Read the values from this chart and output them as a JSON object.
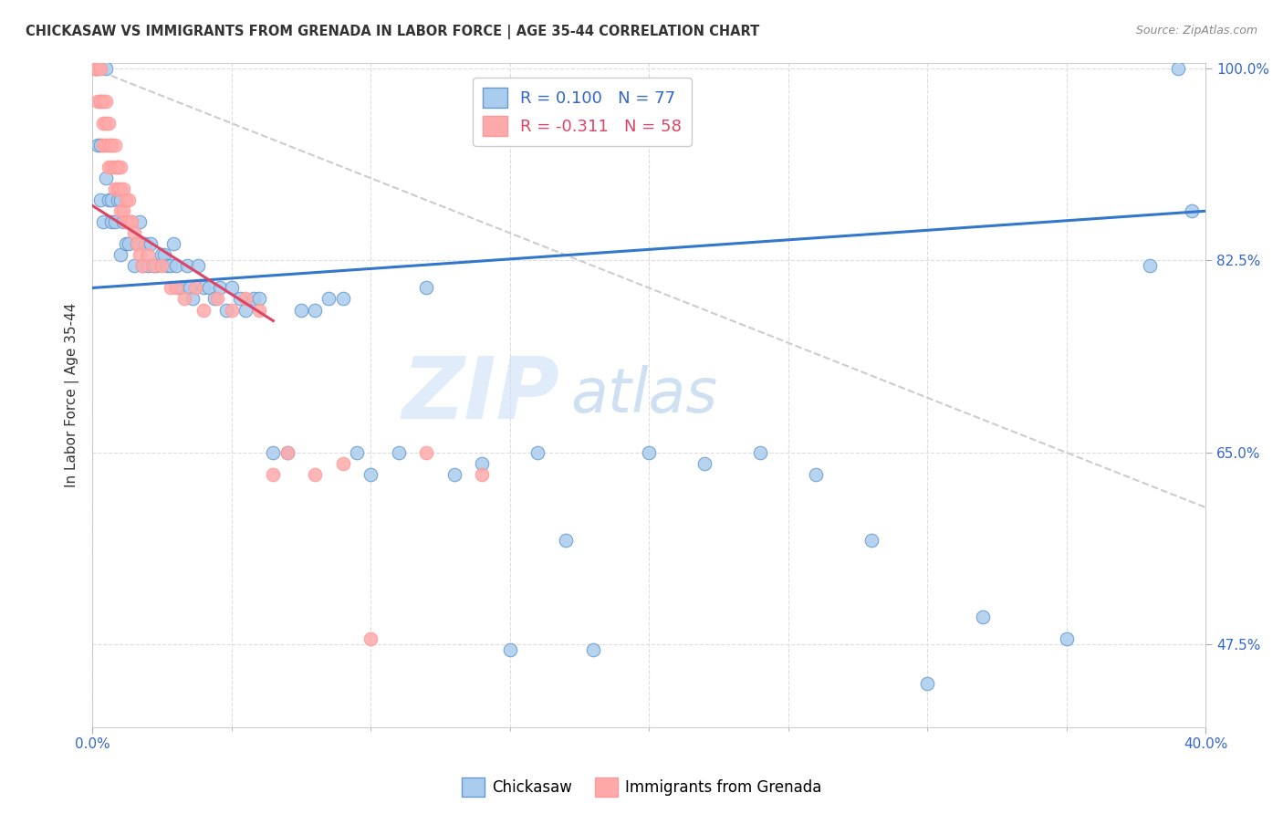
{
  "title": "CHICKASAW VS IMMIGRANTS FROM GRENADA IN LABOR FORCE | AGE 35-44 CORRELATION CHART",
  "source": "Source: ZipAtlas.com",
  "ylabel": "In Labor Force | Age 35-44",
  "xlim": [
    0.0,
    0.4
  ],
  "ylim": [
    0.4,
    1.005
  ],
  "ytick_labels": [
    "100.0%",
    "82.5%",
    "65.0%",
    "47.5%"
  ],
  "ytick_vals": [
    1.0,
    0.825,
    0.65,
    0.475
  ],
  "xtick_labels_left": [
    "0.0%"
  ],
  "xtick_labels_right": [
    "40.0%"
  ],
  "xtick_vals_left": [
    0.0
  ],
  "xtick_vals_right": [
    0.4
  ],
  "legend1_label": "R = 0.100   N = 77",
  "legend2_label": "R = -0.311   N = 58",
  "legend1_color": "#6699cc",
  "legend2_color": "#ff9999",
  "scatter_blue_color": "#aaccee",
  "scatter_pink_color": "#ffaaaa",
  "line_blue_color": "#3377cc",
  "line_pink_color": "#dd4466",
  "line_diag_color": "#cccccc",
  "watermark_zip": "ZIP",
  "watermark_atlas": "atlas",
  "blue_scatter_x": [
    0.001,
    0.002,
    0.002,
    0.003,
    0.003,
    0.004,
    0.005,
    0.005,
    0.006,
    0.007,
    0.007,
    0.008,
    0.009,
    0.01,
    0.01,
    0.011,
    0.012,
    0.013,
    0.014,
    0.015,
    0.016,
    0.017,
    0.018,
    0.019,
    0.02,
    0.021,
    0.022,
    0.023,
    0.025,
    0.026,
    0.027,
    0.028,
    0.029,
    0.03,
    0.031,
    0.032,
    0.034,
    0.035,
    0.036,
    0.038,
    0.04,
    0.042,
    0.044,
    0.046,
    0.048,
    0.05,
    0.053,
    0.055,
    0.058,
    0.06,
    0.065,
    0.07,
    0.075,
    0.08,
    0.085,
    0.09,
    0.095,
    0.1,
    0.11,
    0.12,
    0.13,
    0.14,
    0.15,
    0.16,
    0.17,
    0.18,
    0.2,
    0.22,
    0.24,
    0.26,
    0.28,
    0.3,
    0.32,
    0.35,
    0.38,
    0.39,
    0.395
  ],
  "blue_scatter_y": [
    1.0,
    0.93,
    1.0,
    0.88,
    0.93,
    0.86,
    0.9,
    1.0,
    0.88,
    0.88,
    0.86,
    0.86,
    0.88,
    0.88,
    0.83,
    0.86,
    0.84,
    0.84,
    0.86,
    0.82,
    0.84,
    0.86,
    0.82,
    0.84,
    0.82,
    0.84,
    0.82,
    0.82,
    0.83,
    0.83,
    0.82,
    0.82,
    0.84,
    0.82,
    0.8,
    0.8,
    0.82,
    0.8,
    0.79,
    0.82,
    0.8,
    0.8,
    0.79,
    0.8,
    0.78,
    0.8,
    0.79,
    0.78,
    0.79,
    0.79,
    0.65,
    0.65,
    0.78,
    0.78,
    0.79,
    0.79,
    0.65,
    0.63,
    0.65,
    0.8,
    0.63,
    0.64,
    0.47,
    0.65,
    0.57,
    0.47,
    0.65,
    0.64,
    0.65,
    0.63,
    0.57,
    0.44,
    0.5,
    0.48,
    0.82,
    1.0,
    0.87
  ],
  "pink_scatter_x": [
    0.001,
    0.001,
    0.002,
    0.002,
    0.003,
    0.003,
    0.003,
    0.004,
    0.004,
    0.004,
    0.005,
    0.005,
    0.005,
    0.006,
    0.006,
    0.006,
    0.007,
    0.007,
    0.007,
    0.008,
    0.008,
    0.008,
    0.009,
    0.009,
    0.009,
    0.01,
    0.01,
    0.01,
    0.011,
    0.011,
    0.012,
    0.012,
    0.013,
    0.013,
    0.014,
    0.015,
    0.016,
    0.017,
    0.018,
    0.02,
    0.022,
    0.025,
    0.028,
    0.03,
    0.033,
    0.037,
    0.04,
    0.045,
    0.05,
    0.055,
    0.06,
    0.065,
    0.07,
    0.08,
    0.09,
    0.1,
    0.12,
    0.14
  ],
  "pink_scatter_y": [
    1.0,
    1.0,
    1.0,
    0.97,
    1.0,
    0.97,
    0.97,
    0.95,
    0.97,
    0.93,
    0.95,
    0.97,
    0.93,
    0.95,
    0.93,
    0.91,
    0.93,
    0.93,
    0.91,
    0.91,
    0.93,
    0.89,
    0.91,
    0.91,
    0.89,
    0.91,
    0.89,
    0.87,
    0.89,
    0.87,
    0.88,
    0.86,
    0.88,
    0.86,
    0.86,
    0.85,
    0.84,
    0.83,
    0.82,
    0.83,
    0.82,
    0.82,
    0.8,
    0.8,
    0.79,
    0.8,
    0.78,
    0.79,
    0.78,
    0.79,
    0.78,
    0.63,
    0.65,
    0.63,
    0.64,
    0.48,
    0.65,
    0.63
  ]
}
